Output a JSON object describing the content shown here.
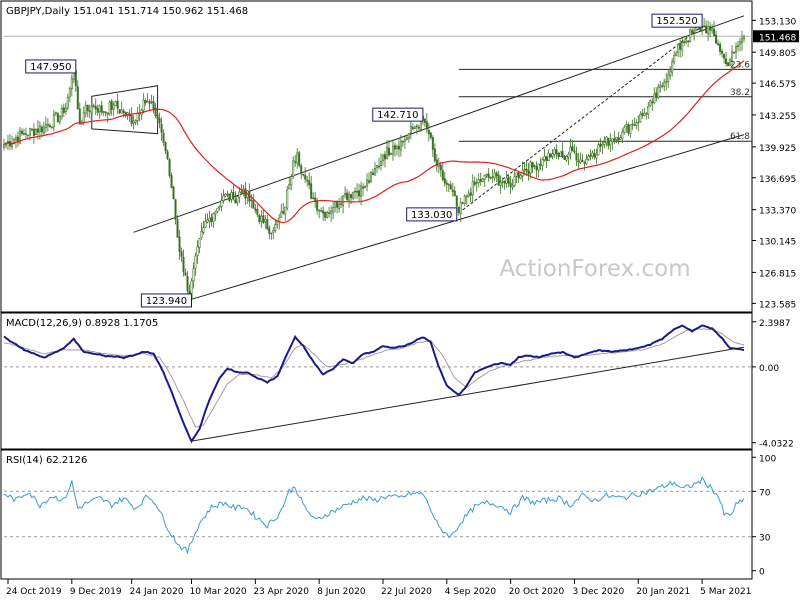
{
  "chart_data": [
    {
      "type": "candlestick",
      "panel": "price",
      "title": "GBPJPY,Daily  151.041 151.714 150.962 151.468",
      "last_price": "151.468",
      "yticks": [
        "153.130",
        "149.805",
        "146.575",
        "143.255",
        "139.925",
        "136.695",
        "133.370",
        "130.145",
        "126.815",
        "123.585"
      ],
      "ytick_values": [
        153.13,
        149.805,
        146.575,
        143.255,
        139.925,
        136.695,
        133.37,
        130.145,
        126.815,
        123.585
      ],
      "ylim": [
        123.1,
        154.0
      ],
      "xticks": [
        "24 Oct 2019",
        "9 Dec 2019",
        "24 Jan 2020",
        "10 Mar 2020",
        "23 Apr 2020",
        "8 Jun 2020",
        "22 Jul 2020",
        "4 Sep 2020",
        "20 Oct 2020",
        "3 Dec 2020",
        "20 Jan 2021",
        "5 Mar 2021"
      ],
      "xtick_bars": [
        2,
        34,
        64,
        94,
        126,
        158,
        190,
        222,
        254,
        286,
        318,
        350
      ],
      "bar_count": 372,
      "grid": false,
      "watermark": "ActionForex.com",
      "anchor_prices": [
        [
          0,
          140.2
        ],
        [
          10,
          141.3
        ],
        [
          20,
          142.0
        ],
        [
          30,
          143.5
        ],
        [
          33,
          146.0
        ],
        [
          35,
          147.95
        ],
        [
          38,
          142.3
        ],
        [
          40,
          143.5
        ],
        [
          45,
          144.2
        ],
        [
          50,
          143.6
        ],
        [
          55,
          144.3
        ],
        [
          60,
          143.5
        ],
        [
          65,
          142.6
        ],
        [
          70,
          144.8
        ],
        [
          75,
          143.9
        ],
        [
          78,
          142.4
        ],
        [
          81,
          139.5
        ],
        [
          85,
          134.5
        ],
        [
          88,
          129.0
        ],
        [
          91,
          126.5
        ],
        [
          93,
          123.94
        ],
        [
          95,
          127.2
        ],
        [
          100,
          131.5
        ],
        [
          105,
          133.0
        ],
        [
          110,
          134.8
        ],
        [
          115,
          134.5
        ],
        [
          120,
          135.5
        ],
        [
          125,
          133.5
        ],
        [
          130,
          132.0
        ],
        [
          135,
          131.2
        ],
        [
          140,
          133.0
        ],
        [
          143,
          136.0
        ],
        [
          145,
          138.5
        ],
        [
          147,
          139.3
        ],
        [
          150,
          137.0
        ],
        [
          155,
          134.5
        ],
        [
          160,
          133.0
        ],
        [
          165,
          133.6
        ],
        [
          170,
          134.8
        ],
        [
          175,
          135.2
        ],
        [
          180,
          135.6
        ],
        [
          185,
          137.0
        ],
        [
          190,
          139.0
        ],
        [
          195,
          140.0
        ],
        [
          200,
          140.5
        ],
        [
          205,
          141.8
        ],
        [
          210,
          142.71
        ],
        [
          213,
          141.3
        ],
        [
          216,
          138.5
        ],
        [
          220,
          136.5
        ],
        [
          224,
          135.5
        ],
        [
          228,
          133.03
        ],
        [
          232,
          134.8
        ],
        [
          236,
          136.0
        ],
        [
          240,
          136.6
        ],
        [
          245,
          136.8
        ],
        [
          250,
          136.3
        ],
        [
          254,
          135.8
        ],
        [
          256,
          136.8
        ],
        [
          260,
          137.5
        ],
        [
          265,
          137.8
        ],
        [
          270,
          138.6
        ],
        [
          275,
          139.2
        ],
        [
          280,
          138.9
        ],
        [
          285,
          139.5
        ],
        [
          290,
          138.4
        ],
        [
          295,
          139.3
        ],
        [
          300,
          140.2
        ],
        [
          305,
          140.8
        ],
        [
          310,
          141.5
        ],
        [
          315,
          142.3
        ],
        [
          320,
          143.2
        ],
        [
          325,
          144.5
        ],
        [
          330,
          146.3
        ],
        [
          335,
          148.8
        ],
        [
          340,
          150.8
        ],
        [
          345,
          151.8
        ],
        [
          350,
          152.52
        ],
        [
          354,
          152.1
        ],
        [
          358,
          150.6
        ],
        [
          362,
          148.6
        ],
        [
          366,
          149.7
        ],
        [
          369,
          150.9
        ],
        [
          371,
          151.468
        ]
      ],
      "peak_labels": [
        {
          "text": "147.950",
          "bar": 35,
          "value": 147.95
        },
        {
          "text": "123.940",
          "bar": 93,
          "value": 123.94
        },
        {
          "text": "142.710",
          "bar": 210,
          "value": 142.71
        },
        {
          "text": "133.030",
          "bar": 228,
          "value": 133.03
        },
        {
          "text": "152.520",
          "bar": 350,
          "value": 152.52
        }
      ],
      "channel_lines": [
        {
          "name": "upper",
          "from": [
            65,
            131.0
          ],
          "to": [
            371,
            153.6
          ]
        },
        {
          "name": "lower",
          "from": [
            93,
            123.94
          ],
          "to": [
            371,
            141.2
          ]
        },
        {
          "name": "trend",
          "from": [
            228,
            133.03
          ],
          "to": [
            350,
            152.52
          ],
          "dashed": true
        }
      ],
      "box": {
        "from_bar": 44,
        "to_bar": 77,
        "top": [
          145.2,
          146.3
        ],
        "bottom": [
          141.8,
          141.3
        ]
      },
      "fib_levels": [
        {
          "label": "23.6",
          "value": 148.01,
          "from_bar": 228
        },
        {
          "label": "38.2",
          "value": 145.15,
          "from_bar": 228
        },
        {
          "label": "61.8",
          "value": 140.51,
          "from_bar": 228
        }
      ],
      "ma_period": 55,
      "colors": {
        "candle": "#3a7020",
        "ma": "#e0201c",
        "line": "#1a1a1a",
        "label_border": "#1a1a6a"
      }
    },
    {
      "type": "line",
      "panel": "macd",
      "title": "MACD(12,26,9) 0.8928 1.1705",
      "yticks": [
        "2.3987",
        "0.00",
        "-4.0322"
      ],
      "ytick_values": [
        2.3987,
        0.0,
        -4.0322
      ],
      "ylim": [
        -4.1,
        2.6
      ],
      "macd_points": [
        [
          0,
          1.6
        ],
        [
          10,
          0.9
        ],
        [
          20,
          0.5
        ],
        [
          30,
          1.0
        ],
        [
          35,
          1.5
        ],
        [
          40,
          0.8
        ],
        [
          50,
          0.6
        ],
        [
          60,
          0.5
        ],
        [
          65,
          0.6
        ],
        [
          70,
          0.8
        ],
        [
          75,
          0.7
        ],
        [
          80,
          -0.3
        ],
        [
          85,
          -1.6
        ],
        [
          90,
          -3.0
        ],
        [
          94,
          -3.95
        ],
        [
          98,
          -3.3
        ],
        [
          102,
          -2.0
        ],
        [
          108,
          -0.6
        ],
        [
          112,
          -0.1
        ],
        [
          117,
          -0.3
        ],
        [
          122,
          -0.3
        ],
        [
          127,
          -0.6
        ],
        [
          132,
          -0.8
        ],
        [
          137,
          -0.5
        ],
        [
          142,
          0.7
        ],
        [
          146,
          1.6
        ],
        [
          150,
          1.1
        ],
        [
          155,
          0.3
        ],
        [
          160,
          -0.4
        ],
        [
          165,
          -0.1
        ],
        [
          170,
          0.4
        ],
        [
          175,
          0.2
        ],
        [
          180,
          0.7
        ],
        [
          185,
          0.8
        ],
        [
          190,
          1.1
        ],
        [
          195,
          1.0
        ],
        [
          200,
          1.1
        ],
        [
          205,
          1.3
        ],
        [
          210,
          1.6
        ],
        [
          214,
          1.3
        ],
        [
          218,
          0.0
        ],
        [
          222,
          -1.0
        ],
        [
          228,
          -1.5
        ],
        [
          232,
          -1.0
        ],
        [
          236,
          -0.3
        ],
        [
          240,
          -0.1
        ],
        [
          245,
          0.1
        ],
        [
          250,
          0.2
        ],
        [
          254,
          0.1
        ],
        [
          258,
          0.5
        ],
        [
          262,
          0.6
        ],
        [
          268,
          0.5
        ],
        [
          274,
          0.7
        ],
        [
          280,
          0.8
        ],
        [
          286,
          0.5
        ],
        [
          292,
          0.7
        ],
        [
          298,
          0.9
        ],
        [
          305,
          0.8
        ],
        [
          312,
          0.9
        ],
        [
          318,
          1.0
        ],
        [
          324,
          1.2
        ],
        [
          330,
          1.5
        ],
        [
          336,
          2.0
        ],
        [
          340,
          2.2
        ],
        [
          345,
          1.9
        ],
        [
          350,
          2.2
        ],
        [
          355,
          2.05
        ],
        [
          360,
          1.5
        ],
        [
          364,
          1.0
        ],
        [
          368,
          0.95
        ],
        [
          371,
          0.8928
        ]
      ],
      "signal_points": [
        [
          0,
          1.3
        ],
        [
          10,
          1.0
        ],
        [
          20,
          0.7
        ],
        [
          30,
          0.9
        ],
        [
          40,
          0.9
        ],
        [
          50,
          0.7
        ],
        [
          60,
          0.6
        ],
        [
          70,
          0.7
        ],
        [
          78,
          0.5
        ],
        [
          84,
          -0.5
        ],
        [
          90,
          -1.8
        ],
        [
          96,
          -3.2
        ],
        [
          100,
          -3.1
        ],
        [
          106,
          -2.0
        ],
        [
          112,
          -0.9
        ],
        [
          118,
          -0.4
        ],
        [
          126,
          -0.4
        ],
        [
          134,
          -0.6
        ],
        [
          140,
          0.0
        ],
        [
          146,
          1.0
        ],
        [
          150,
          1.2
        ],
        [
          156,
          0.6
        ],
        [
          162,
          0.0
        ],
        [
          168,
          0.1
        ],
        [
          176,
          0.3
        ],
        [
          184,
          0.6
        ],
        [
          192,
          0.9
        ],
        [
          200,
          1.0
        ],
        [
          208,
          1.3
        ],
        [
          214,
          1.4
        ],
        [
          220,
          0.6
        ],
        [
          226,
          -0.6
        ],
        [
          232,
          -1.1
        ],
        [
          238,
          -0.6
        ],
        [
          244,
          -0.2
        ],
        [
          252,
          0.1
        ],
        [
          260,
          0.3
        ],
        [
          270,
          0.5
        ],
        [
          280,
          0.6
        ],
        [
          290,
          0.6
        ],
        [
          300,
          0.7
        ],
        [
          310,
          0.8
        ],
        [
          320,
          0.9
        ],
        [
          330,
          1.2
        ],
        [
          338,
          1.7
        ],
        [
          344,
          2.0
        ],
        [
          350,
          2.0
        ],
        [
          356,
          2.0
        ],
        [
          362,
          1.6
        ],
        [
          366,
          1.3
        ],
        [
          371,
          1.1705
        ]
      ],
      "trendline": {
        "from": [
          94,
          -3.95
        ],
        "to": [
          371,
          1.05
        ]
      },
      "colors": {
        "macd": "#1a1a8a",
        "signal": "#a0a0a0",
        "zero": "#999999"
      }
    },
    {
      "type": "line",
      "panel": "rsi",
      "title": "RSI(14) 62.2126",
      "yticks": [
        "100",
        "70",
        "30",
        "0"
      ],
      "ytick_values": [
        100,
        70,
        30,
        0
      ],
      "ylim": [
        -2,
        102
      ],
      "rsi_points": [
        [
          0,
          68
        ],
        [
          6,
          62
        ],
        [
          12,
          70
        ],
        [
          18,
          58
        ],
        [
          24,
          66
        ],
        [
          30,
          62
        ],
        [
          34,
          78
        ],
        [
          37,
          55
        ],
        [
          42,
          60
        ],
        [
          48,
          64
        ],
        [
          54,
          58
        ],
        [
          60,
          64
        ],
        [
          66,
          55
        ],
        [
          72,
          66
        ],
        [
          76,
          60
        ],
        [
          80,
          45
        ],
        [
          84,
          32
        ],
        [
          88,
          22
        ],
        [
          92,
          17
        ],
        [
          95,
          30
        ],
        [
          98,
          42
        ],
        [
          104,
          56
        ],
        [
          110,
          60
        ],
        [
          116,
          55
        ],
        [
          120,
          57
        ],
        [
          126,
          48
        ],
        [
          132,
          40
        ],
        [
          138,
          50
        ],
        [
          143,
          70
        ],
        [
          146,
          74
        ],
        [
          150,
          58
        ],
        [
          156,
          44
        ],
        [
          162,
          50
        ],
        [
          168,
          55
        ],
        [
          174,
          60
        ],
        [
          180,
          64
        ],
        [
          186,
          62
        ],
        [
          192,
          66
        ],
        [
          198,
          64
        ],
        [
          204,
          68
        ],
        [
          210,
          68
        ],
        [
          214,
          54
        ],
        [
          218,
          38
        ],
        [
          224,
          30
        ],
        [
          230,
          45
        ],
        [
          236,
          56
        ],
        [
          242,
          60
        ],
        [
          248,
          58
        ],
        [
          254,
          52
        ],
        [
          260,
          64
        ],
        [
          266,
          60
        ],
        [
          272,
          62
        ],
        [
          278,
          64
        ],
        [
          284,
          58
        ],
        [
          290,
          66
        ],
        [
          296,
          62
        ],
        [
          302,
          66
        ],
        [
          310,
          64
        ],
        [
          318,
          68
        ],
        [
          324,
          70
        ],
        [
          330,
          74
        ],
        [
          336,
          78
        ],
        [
          340,
          72
        ],
        [
          346,
          76
        ],
        [
          350,
          80
        ],
        [
          354,
          74
        ],
        [
          358,
          66
        ],
        [
          361,
          50
        ],
        [
          364,
          48
        ],
        [
          367,
          58
        ],
        [
          371,
          62.2126
        ]
      ],
      "color": "#3a9ad8"
    }
  ],
  "x_labels": [
    "24 Oct 2019",
    "9 Dec 2019",
    "24 Jan 2020",
    "10 Mar 2020",
    "23 Apr 2020",
    "8 Jun 2020",
    "22 Jul 2020",
    "4 Sep 2020",
    "20 Oct 2020",
    "3 Dec 2020",
    "20 Jan 2021",
    "5 Mar 2021"
  ]
}
